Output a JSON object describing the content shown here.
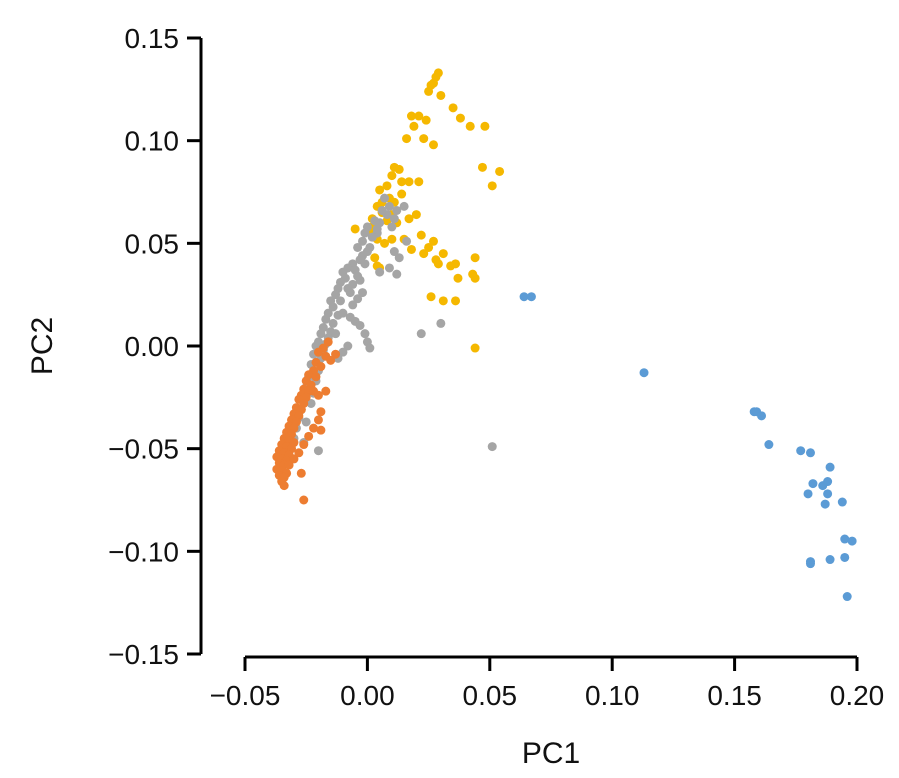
{
  "chart_data": {
    "type": "scatter",
    "title": "",
    "xlabel": "PC1",
    "ylabel": "PC2",
    "xlim": [
      -0.05,
      0.2
    ],
    "ylim": [
      -0.15,
      0.15
    ],
    "x_ticks": [
      -0.05,
      0.0,
      0.05,
      0.1,
      0.15,
      0.2
    ],
    "y_ticks": [
      -0.15,
      -0.1,
      -0.05,
      0.0,
      0.05,
      0.1,
      0.15
    ],
    "x_tick_labels": [
      "−0.05",
      "0.00",
      "0.05",
      "0.10",
      "0.15",
      "0.20"
    ],
    "y_tick_labels": [
      "−0.15",
      "−0.10",
      "−0.05",
      "0.00",
      "0.05",
      "0.10",
      "0.15"
    ],
    "grid": false,
    "legend": "none",
    "series": [
      {
        "color": "#F5B800",
        "points": [
          [
            0.029,
            0.133
          ],
          [
            0.028,
            0.131
          ],
          [
            0.026,
            0.127
          ],
          [
            0.025,
            0.124
          ],
          [
            0.027,
            0.128
          ],
          [
            0.03,
            0.122
          ],
          [
            0.035,
            0.116
          ],
          [
            0.038,
            0.111
          ],
          [
            0.042,
            0.107
          ],
          [
            0.048,
            0.107
          ],
          [
            0.018,
            0.112
          ],
          [
            0.021,
            0.112
          ],
          [
            0.024,
            0.11
          ],
          [
            0.019,
            0.107
          ],
          [
            0.016,
            0.101
          ],
          [
            0.023,
            0.101
          ],
          [
            0.027,
            0.098
          ],
          [
            0.011,
            0.087
          ],
          [
            0.013,
            0.086
          ],
          [
            0.01,
            0.083
          ],
          [
            0.014,
            0.08
          ],
          [
            0.017,
            0.08
          ],
          [
            0.021,
            0.08
          ],
          [
            0.008,
            0.078
          ],
          [
            0.005,
            0.076
          ],
          [
            0.009,
            0.072
          ],
          [
            0.011,
            0.07
          ],
          [
            0.004,
            0.068
          ],
          [
            0.006,
            0.065
          ],
          [
            0.002,
            0.062
          ],
          [
            0.008,
            0.061
          ],
          [
            0.012,
            0.06
          ],
          [
            0.017,
            0.062
          ],
          [
            0.02,
            0.064
          ],
          [
            -0.005,
            0.057
          ],
          [
            0.001,
            0.056
          ],
          [
            0.004,
            0.052
          ],
          [
            0.007,
            0.05
          ],
          [
            0.01,
            0.052
          ],
          [
            0.015,
            0.052
          ],
          [
            0.022,
            0.054
          ],
          [
            0.027,
            0.051
          ],
          [
            0.018,
            0.047
          ],
          [
            0.023,
            0.045
          ],
          [
            0.025,
            0.048
          ],
          [
            0.031,
            0.045
          ],
          [
            0.028,
            0.042
          ],
          [
            0.044,
            0.043
          ],
          [
            0.036,
            0.04
          ],
          [
            0.003,
            0.043
          ],
          [
            0.004,
            0.039
          ],
          [
            0.005,
            0.038
          ],
          [
            0.029,
            0.04
          ],
          [
            0.034,
            0.039
          ],
          [
            0.037,
            0.033
          ],
          [
            0.043,
            0.035
          ],
          [
            0.044,
            0.033
          ],
          [
            0.054,
            0.085
          ],
          [
            0.051,
            0.078
          ],
          [
            0.047,
            0.087
          ],
          [
            0.026,
            0.024
          ],
          [
            0.031,
            0.022
          ],
          [
            0.036,
            0.022
          ],
          [
            0.044,
            -0.001
          ],
          [
            0.002,
            0.058
          ],
          [
            0.006,
            0.07
          ],
          [
            0.014,
            0.074
          ],
          [
            0.01,
            0.064
          ]
        ]
      },
      {
        "color": "#A5A5A5",
        "points": [
          [
            0.007,
            0.072
          ],
          [
            0.009,
            0.068
          ],
          [
            0.012,
            0.066
          ],
          [
            0.011,
            0.062
          ],
          [
            0.008,
            0.064
          ],
          [
            0.005,
            0.06
          ],
          [
            0.003,
            0.061
          ],
          [
            0.0,
            0.058
          ],
          [
            0.004,
            0.055
          ],
          [
            0.002,
            0.053
          ],
          [
            -0.001,
            0.055
          ],
          [
            -0.002,
            0.051
          ],
          [
            -0.004,
            0.048
          ],
          [
            0.0,
            0.046
          ],
          [
            -0.002,
            0.044
          ],
          [
            -0.003,
            0.042
          ],
          [
            -0.006,
            0.04
          ],
          [
            -0.008,
            0.038
          ],
          [
            -0.005,
            0.037
          ],
          [
            -0.01,
            0.036
          ],
          [
            -0.009,
            0.033
          ],
          [
            -0.011,
            0.031
          ],
          [
            -0.012,
            0.028
          ],
          [
            -0.008,
            0.028
          ],
          [
            -0.013,
            0.025
          ],
          [
            -0.015,
            0.022
          ],
          [
            -0.011,
            0.022
          ],
          [
            -0.014,
            0.019
          ],
          [
            -0.016,
            0.016
          ],
          [
            -0.012,
            0.015
          ],
          [
            -0.017,
            0.013
          ],
          [
            -0.014,
            0.011
          ],
          [
            -0.018,
            0.009
          ],
          [
            -0.015,
            0.007
          ],
          [
            -0.019,
            0.006
          ],
          [
            -0.016,
            0.004
          ],
          [
            -0.02,
            0.002
          ],
          [
            -0.017,
            0.001
          ],
          [
            -0.021,
            0.0
          ],
          [
            -0.018,
            -0.002
          ],
          [
            -0.022,
            -0.004
          ],
          [
            -0.019,
            -0.006
          ],
          [
            -0.023,
            -0.009
          ],
          [
            -0.02,
            -0.012
          ],
          [
            -0.024,
            -0.015
          ],
          [
            -0.021,
            -0.017
          ],
          [
            -0.025,
            -0.02
          ],
          [
            -0.022,
            -0.023
          ],
          [
            -0.026,
            -0.025
          ],
          [
            -0.023,
            -0.028
          ],
          [
            -0.027,
            -0.031
          ],
          [
            -0.028,
            -0.035
          ],
          [
            -0.025,
            -0.037
          ],
          [
            -0.029,
            -0.04
          ],
          [
            -0.03,
            -0.045
          ],
          [
            -0.026,
            -0.047
          ],
          [
            -0.02,
            -0.051
          ],
          [
            -0.01,
            0.016
          ],
          [
            -0.007,
            0.014
          ],
          [
            -0.005,
            0.012
          ],
          [
            -0.003,
            0.01
          ],
          [
            -0.001,
            0.006
          ],
          [
            0.0,
            0.002
          ],
          [
            0.001,
            -0.001
          ],
          [
            -0.008,
            0.0
          ],
          [
            -0.01,
            -0.003
          ],
          [
            -0.012,
            -0.006
          ],
          [
            -0.013,
            0.006
          ],
          [
            -0.006,
            0.02
          ],
          [
            -0.004,
            0.023
          ],
          [
            -0.002,
            0.026
          ],
          [
            -0.006,
            0.03
          ],
          [
            -0.003,
            0.032
          ],
          [
            0.005,
            0.036
          ],
          [
            0.009,
            0.038
          ],
          [
            0.012,
            0.035
          ],
          [
            0.013,
            0.043
          ],
          [
            0.016,
            0.051
          ],
          [
            0.011,
            0.046
          ],
          [
            0.022,
            0.006
          ],
          [
            0.03,
            0.011
          ],
          [
            0.051,
            -0.049
          ],
          [
            0.004,
            0.057
          ],
          [
            0.01,
            0.058
          ],
          [
            0.006,
            0.066
          ],
          [
            0.015,
            0.068
          ],
          [
            0.001,
            0.048
          ],
          [
            -0.004,
            0.034
          ],
          [
            -0.007,
            0.026
          ],
          [
            -0.001,
            0.04
          ]
        ]
      },
      {
        "color": "#ED7D31",
        "points": [
          [
            -0.016,
            0.002
          ],
          [
            -0.018,
            -0.001
          ],
          [
            -0.02,
            -0.003
          ],
          [
            -0.017,
            -0.005
          ],
          [
            -0.021,
            -0.008
          ],
          [
            -0.019,
            -0.01
          ],
          [
            -0.022,
            -0.012
          ],
          [
            -0.024,
            -0.014
          ],
          [
            -0.021,
            -0.015
          ],
          [
            -0.025,
            -0.017
          ],
          [
            -0.023,
            -0.019
          ],
          [
            -0.026,
            -0.021
          ],
          [
            -0.024,
            -0.022
          ],
          [
            -0.022,
            -0.022
          ],
          [
            -0.027,
            -0.024
          ],
          [
            -0.025,
            -0.025
          ],
          [
            -0.028,
            -0.026
          ],
          [
            -0.026,
            -0.028
          ],
          [
            -0.029,
            -0.03
          ],
          [
            -0.027,
            -0.031
          ],
          [
            -0.03,
            -0.033
          ],
          [
            -0.028,
            -0.034
          ],
          [
            -0.031,
            -0.036
          ],
          [
            -0.029,
            -0.037
          ],
          [
            -0.032,
            -0.039
          ],
          [
            -0.03,
            -0.04
          ],
          [
            -0.033,
            -0.042
          ],
          [
            -0.031,
            -0.043
          ],
          [
            -0.034,
            -0.045
          ],
          [
            -0.032,
            -0.046
          ],
          [
            -0.03,
            -0.047
          ],
          [
            -0.035,
            -0.048
          ],
          [
            -0.033,
            -0.049
          ],
          [
            -0.031,
            -0.05
          ],
          [
            -0.036,
            -0.051
          ],
          [
            -0.034,
            -0.052
          ],
          [
            -0.032,
            -0.053
          ],
          [
            -0.037,
            -0.054
          ],
          [
            -0.035,
            -0.055
          ],
          [
            -0.033,
            -0.056
          ],
          [
            -0.036,
            -0.057
          ],
          [
            -0.034,
            -0.058
          ],
          [
            -0.032,
            -0.058
          ],
          [
            -0.037,
            -0.06
          ],
          [
            -0.035,
            -0.061
          ],
          [
            -0.033,
            -0.062
          ],
          [
            -0.036,
            -0.063
          ],
          [
            -0.034,
            -0.064
          ],
          [
            -0.035,
            -0.066
          ],
          [
            -0.034,
            -0.068
          ],
          [
            -0.027,
            -0.062
          ],
          [
            -0.026,
            -0.075
          ],
          [
            -0.03,
            -0.055
          ],
          [
            -0.028,
            -0.052
          ],
          [
            -0.026,
            -0.048
          ],
          [
            -0.024,
            -0.044
          ],
          [
            -0.022,
            -0.04
          ],
          [
            -0.02,
            -0.036
          ],
          [
            -0.019,
            -0.032
          ],
          [
            -0.02,
            -0.024
          ],
          [
            -0.017,
            -0.022
          ],
          [
            -0.019,
            -0.041
          ],
          [
            -0.015,
            -0.007
          ],
          [
            -0.013,
            -0.004
          ]
        ]
      },
      {
        "color": "#5B9BD5",
        "points": [
          [
            0.064,
            0.024
          ],
          [
            0.067,
            0.024
          ],
          [
            0.113,
            -0.013
          ],
          [
            0.158,
            -0.032
          ],
          [
            0.159,
            -0.032
          ],
          [
            0.161,
            -0.034
          ],
          [
            0.164,
            -0.048
          ],
          [
            0.177,
            -0.051
          ],
          [
            0.181,
            -0.052
          ],
          [
            0.189,
            -0.059
          ],
          [
            0.182,
            -0.067
          ],
          [
            0.186,
            -0.068
          ],
          [
            0.18,
            -0.072
          ],
          [
            0.188,
            -0.066
          ],
          [
            0.188,
            -0.072
          ],
          [
            0.194,
            -0.076
          ],
          [
            0.187,
            -0.077
          ],
          [
            0.195,
            -0.094
          ],
          [
            0.198,
            -0.095
          ],
          [
            0.189,
            -0.104
          ],
          [
            0.195,
            -0.103
          ],
          [
            0.181,
            -0.105
          ],
          [
            0.181,
            -0.106
          ],
          [
            0.196,
            -0.122
          ]
        ]
      }
    ]
  }
}
